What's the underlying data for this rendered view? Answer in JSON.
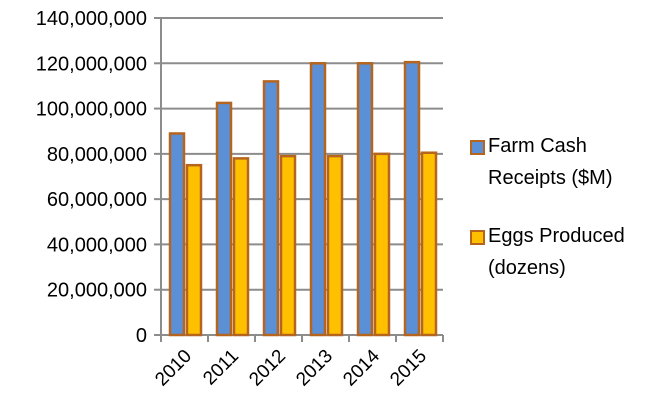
{
  "chart_data": {
    "type": "bar",
    "categories": [
      "2010",
      "2011",
      "2012",
      "2013",
      "2014",
      "2015"
    ],
    "series": [
      {
        "name": "Farm Cash Receipts ($M)",
        "values": [
          89000000,
          102500000,
          112000000,
          120000000,
          120000000,
          120500000
        ],
        "color": "#5b8fd6"
      },
      {
        "name": "Eggs Produced (dozens)",
        "values": [
          75000000,
          78000000,
          79000000,
          79000000,
          80000000,
          80500000
        ],
        "color": "#ffc000"
      }
    ],
    "y_ticks": [
      "0",
      "20,000,000",
      "40,000,000",
      "60,000,000",
      "80,000,000",
      "100,000,000",
      "120,000,000",
      "140,000,000"
    ],
    "ylim": [
      0,
      140000000
    ],
    "grid": true,
    "legend_position": "right",
    "bar_outline_color": "#b5651d",
    "legend": [
      {
        "line1": "Farm Cash",
        "line2": "Receipts ($M)"
      },
      {
        "line1": "Eggs Produced",
        "line2": "(dozens)"
      }
    ]
  }
}
